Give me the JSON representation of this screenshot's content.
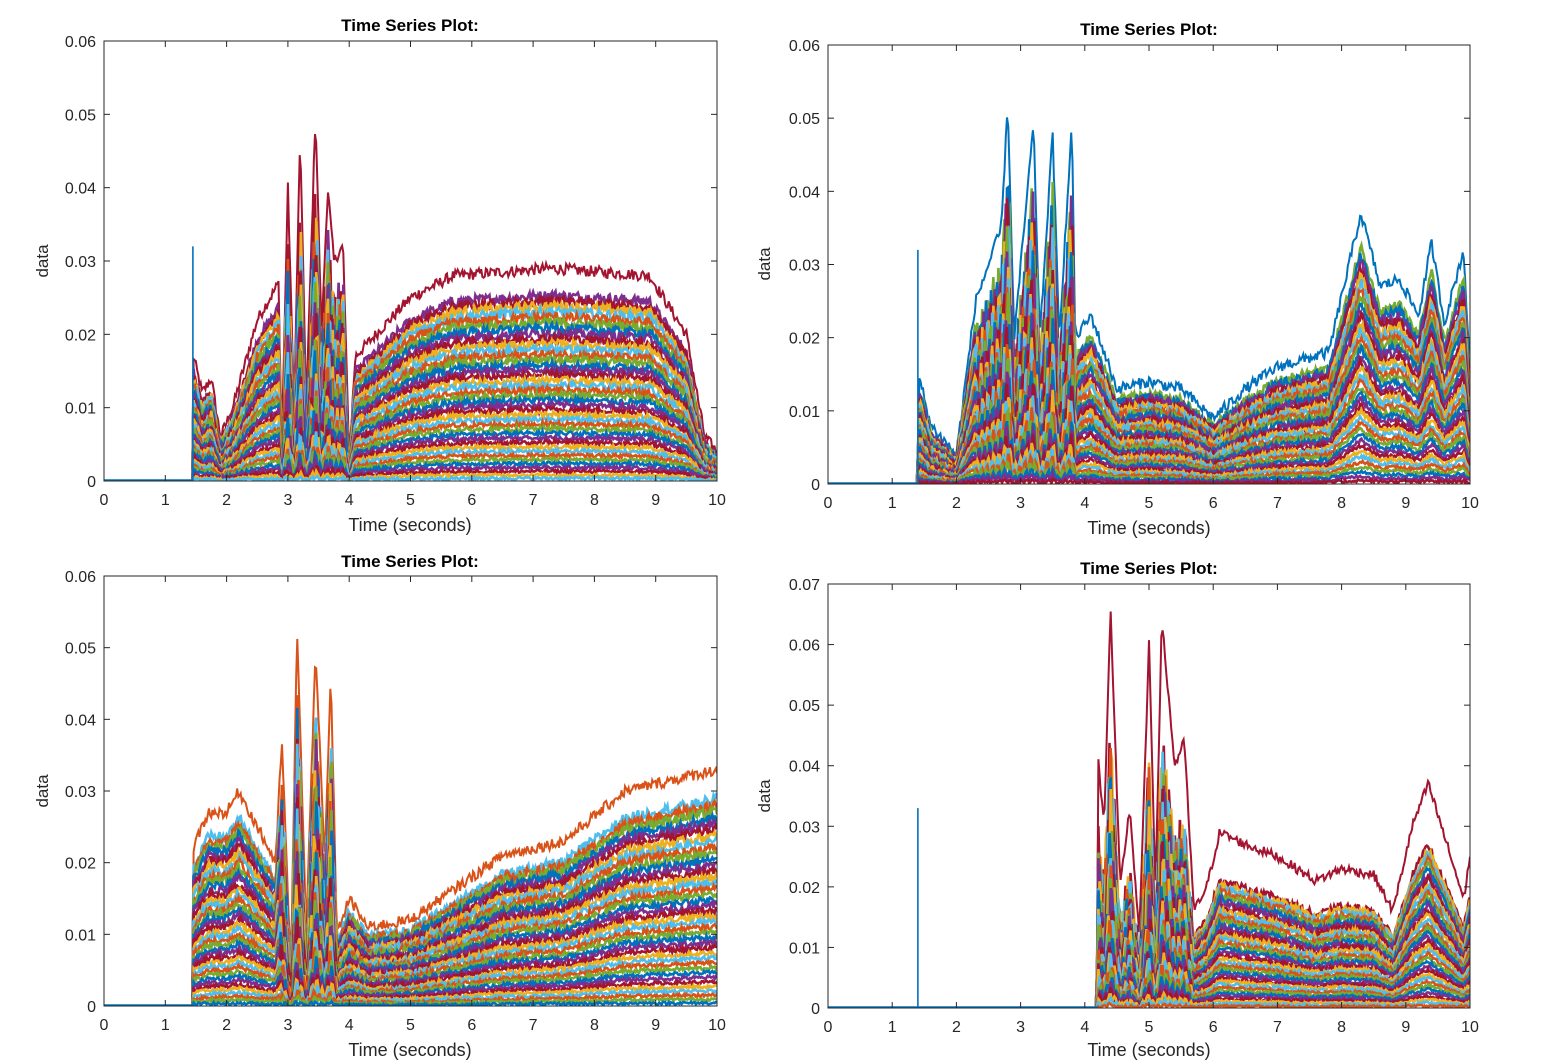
{
  "palette": [
    "#0072BD",
    "#D95319",
    "#EDB120",
    "#7E2F8E",
    "#77AC30",
    "#4DBEEE",
    "#A2142F"
  ],
  "chart_data": [
    {
      "type": "line",
      "title": "Time Series Plot:",
      "xlabel": "Time (seconds)",
      "ylabel": "data",
      "xlim": [
        0,
        10
      ],
      "ylim": [
        0,
        0.06
      ],
      "xticks": [
        0,
        1,
        2,
        3,
        4,
        5,
        6,
        7,
        8,
        9,
        10
      ],
      "yticks": [
        0,
        0.01,
        0.02,
        0.03,
        0.04,
        0.05,
        0.06
      ],
      "grid": false,
      "n_series": 40,
      "top_series_color": "#A2142F",
      "spike": {
        "x": 1.45,
        "y": 0.032,
        "color": "#0072BD"
      },
      "burst_range": [
        2.85,
        4.0
      ],
      "envelope": [
        [
          0,
          0
        ],
        [
          1.45,
          0
        ],
        [
          1.46,
          0.017
        ],
        [
          1.6,
          0.012
        ],
        [
          1.75,
          0.014
        ],
        [
          1.9,
          0.006
        ],
        [
          2.1,
          0.01
        ],
        [
          2.5,
          0.022
        ],
        [
          2.85,
          0.027
        ],
        [
          2.9,
          0.005
        ],
        [
          3.0,
          0.04
        ],
        [
          3.1,
          0.01
        ],
        [
          3.2,
          0.047
        ],
        [
          3.3,
          0.01
        ],
        [
          3.45,
          0.05
        ],
        [
          3.55,
          0.02
        ],
        [
          3.65,
          0.04
        ],
        [
          3.75,
          0.03
        ],
        [
          3.9,
          0.032
        ],
        [
          4.0,
          0.003
        ],
        [
          4.1,
          0.017
        ],
        [
          5,
          0.025
        ],
        [
          5.7,
          0.028
        ],
        [
          7.3,
          0.029
        ],
        [
          8.9,
          0.028
        ],
        [
          9.5,
          0.02
        ],
        [
          9.8,
          0.006
        ],
        [
          10,
          0.004
        ]
      ]
    },
    {
      "type": "line",
      "title": "Time Series Plot:",
      "xlabel": "Time (seconds)",
      "ylabel": "data",
      "xlim": [
        0,
        10
      ],
      "ylim": [
        0,
        0.06
      ],
      "xticks": [
        0,
        1,
        2,
        3,
        4,
        5,
        6,
        7,
        8,
        9,
        10
      ],
      "yticks": [
        0,
        0.01,
        0.02,
        0.03,
        0.04,
        0.05,
        0.06
      ],
      "grid": false,
      "n_series": 40,
      "top_series_color": "#0072BD",
      "spike": {
        "x": 1.4,
        "y": 0.032,
        "color": "#0072BD"
      },
      "burst_range": [
        2.3,
        3.9
      ],
      "envelope": [
        [
          0,
          0
        ],
        [
          1.4,
          0
        ],
        [
          1.41,
          0.015
        ],
        [
          1.6,
          0.008
        ],
        [
          2,
          0.004
        ],
        [
          2.3,
          0.025
        ],
        [
          2.7,
          0.035
        ],
        [
          2.8,
          0.052
        ],
        [
          2.9,
          0.02
        ],
        [
          3.2,
          0.049
        ],
        [
          3.3,
          0.02
        ],
        [
          3.5,
          0.048
        ],
        [
          3.6,
          0.02
        ],
        [
          3.8,
          0.049
        ],
        [
          3.85,
          0.02
        ],
        [
          4.1,
          0.023
        ],
        [
          4.5,
          0.013
        ],
        [
          5,
          0.014
        ],
        [
          5.5,
          0.013
        ],
        [
          6,
          0.009
        ],
        [
          6.5,
          0.013
        ],
        [
          7,
          0.016
        ],
        [
          7.8,
          0.018
        ],
        [
          8.3,
          0.037
        ],
        [
          8.6,
          0.027
        ],
        [
          8.9,
          0.028
        ],
        [
          9.2,
          0.023
        ],
        [
          9.4,
          0.033
        ],
        [
          9.6,
          0.022
        ],
        [
          9.9,
          0.032
        ],
        [
          10,
          0.015
        ]
      ]
    },
    {
      "type": "line",
      "title": "Time Series Plot:",
      "xlabel": "Time (seconds)",
      "ylabel": "data",
      "xlim": [
        0,
        10
      ],
      "ylim": [
        0,
        0.06
      ],
      "xticks": [
        0,
        1,
        2,
        3,
        4,
        5,
        6,
        7,
        8,
        9,
        10
      ],
      "yticks": [
        0,
        0.01,
        0.02,
        0.03,
        0.04,
        0.05,
        0.06
      ],
      "grid": false,
      "n_series": 40,
      "top_series_color": "#D95319",
      "spike": null,
      "burst_range": [
        2.85,
        3.8
      ],
      "envelope": [
        [
          0,
          0
        ],
        [
          1.45,
          0
        ],
        [
          1.46,
          0.022
        ],
        [
          1.7,
          0.027
        ],
        [
          2,
          0.027
        ],
        [
          2.2,
          0.03
        ],
        [
          2.5,
          0.025
        ],
        [
          2.8,
          0.02
        ],
        [
          2.9,
          0.037
        ],
        [
          3.05,
          0.005
        ],
        [
          3.15,
          0.053
        ],
        [
          3.3,
          0.01
        ],
        [
          3.45,
          0.05
        ],
        [
          3.6,
          0.02
        ],
        [
          3.7,
          0.046
        ],
        [
          3.8,
          0.01
        ],
        [
          4,
          0.015
        ],
        [
          4.3,
          0.011
        ],
        [
          5,
          0.012
        ],
        [
          6,
          0.018
        ],
        [
          6.5,
          0.021
        ],
        [
          7.5,
          0.023
        ],
        [
          8.5,
          0.03
        ],
        [
          10,
          0.033
        ]
      ]
    },
    {
      "type": "line",
      "title": "Time Series Plot:",
      "xlabel": "Time (seconds)",
      "ylabel": "data",
      "xlim": [
        0,
        10
      ],
      "ylim": [
        0,
        0.07
      ],
      "xticks": [
        0,
        1,
        2,
        3,
        4,
        5,
        6,
        7,
        8,
        9,
        10
      ],
      "yticks": [
        0,
        0.01,
        0.02,
        0.03,
        0.04,
        0.05,
        0.06,
        0.07
      ],
      "grid": false,
      "n_series": 40,
      "top_series_color": "#A2142F",
      "spike": {
        "x": 1.4,
        "y": 0.033,
        "color": "#0072BD"
      },
      "burst_range": [
        4.2,
        5.7
      ],
      "envelope": [
        [
          0,
          0
        ],
        [
          4.19,
          0
        ],
        [
          4.2,
          0.042
        ],
        [
          4.3,
          0.03
        ],
        [
          4.4,
          0.066
        ],
        [
          4.55,
          0.02
        ],
        [
          4.7,
          0.033
        ],
        [
          4.85,
          0.012
        ],
        [
          5,
          0.06
        ],
        [
          5.1,
          0.02
        ],
        [
          5.2,
          0.064
        ],
        [
          5.4,
          0.04
        ],
        [
          5.55,
          0.044
        ],
        [
          5.7,
          0.016
        ],
        [
          5.9,
          0.02
        ],
        [
          6.1,
          0.029
        ],
        [
          6.5,
          0.027
        ],
        [
          7,
          0.025
        ],
        [
          7.6,
          0.021
        ],
        [
          8,
          0.023
        ],
        [
          8.5,
          0.022
        ],
        [
          8.8,
          0.016
        ],
        [
          9.1,
          0.03
        ],
        [
          9.35,
          0.037
        ],
        [
          9.7,
          0.025
        ],
        [
          9.9,
          0.018
        ],
        [
          10,
          0.025
        ]
      ]
    }
  ]
}
